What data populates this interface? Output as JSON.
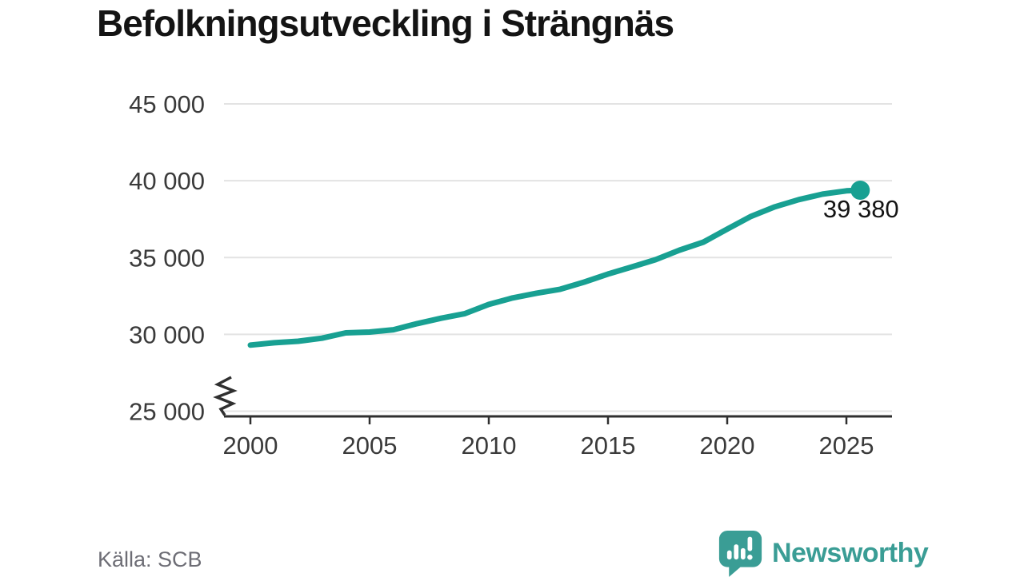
{
  "header": {
    "title": "Befolkningsutveckling i Strängnäs"
  },
  "footer": {
    "source": "Källa: SCB",
    "brand": "Newsworthy"
  },
  "colors": {
    "line": "#18a092",
    "dot": "#18a092",
    "grid": "#e3e3e3",
    "axis": "#2f2f2f",
    "tick_text": "#3a3a3a",
    "title_text": "#141414",
    "source_text": "#6d6d75",
    "brand_teal": "#3a9d95",
    "value_label": "#141414",
    "logo_bars": "#ffffff"
  },
  "chart_data": {
    "type": "line",
    "title": "Befolkningsutveckling i Strängnäs",
    "source": "Källa: SCB",
    "x": [
      2000,
      2001,
      2002,
      2003,
      2004,
      2005,
      2006,
      2007,
      2008,
      2009,
      2010,
      2011,
      2012,
      2013,
      2014,
      2015,
      2016,
      2017,
      2018,
      2019,
      2020,
      2021,
      2022,
      2023,
      2024,
      2025,
      2025.58
    ],
    "series": [
      {
        "values": [
          29300,
          29450,
          29550,
          29750,
          30100,
          30150,
          30300,
          30700,
          31050,
          31350,
          31950,
          32370,
          32680,
          32940,
          33400,
          33925,
          34390,
          34860,
          35480,
          36000,
          36850,
          37680,
          38300,
          38770,
          39130,
          39340,
          39380
        ]
      }
    ],
    "latest_value": 39380,
    "latest_value_label": "39 380",
    "xticks": [
      2000,
      2005,
      2010,
      2015,
      2020,
      2025
    ],
    "xtick_labels": [
      "2000",
      "2005",
      "2010",
      "2015",
      "2020",
      "2025"
    ],
    "yticks": [
      45000,
      40000,
      35000,
      30000,
      25000
    ],
    "ytick_labels": [
      "45 000",
      "40 000",
      "35 000",
      "30 000",
      "25 000"
    ],
    "ylim": [
      25000,
      45000
    ],
    "xlim": [
      1998.9,
      2026.9
    ],
    "grid": true,
    "axis_break": true,
    "legend": "none"
  }
}
